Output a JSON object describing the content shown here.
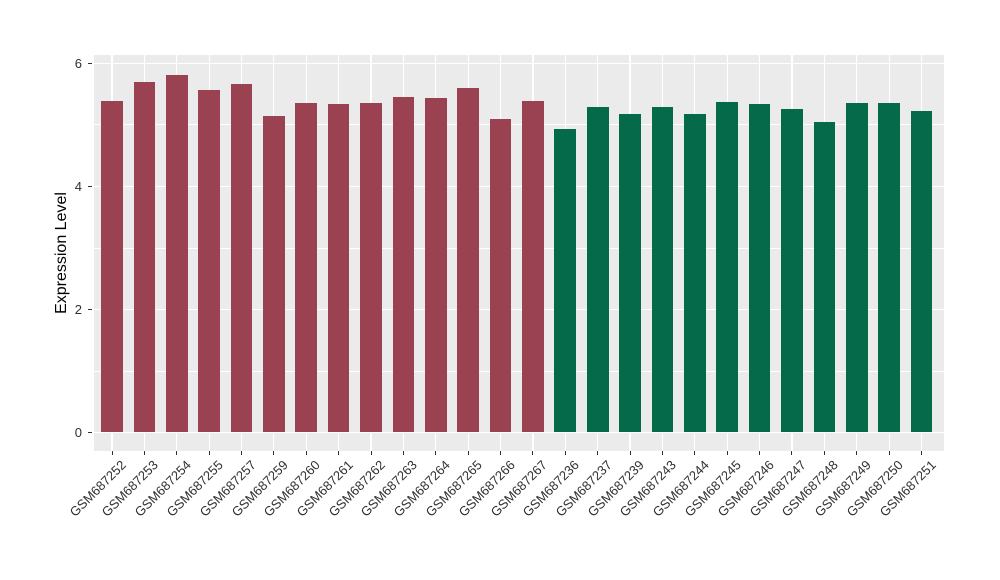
{
  "chart_data": {
    "type": "bar",
    "title": "",
    "xlabel": "",
    "ylabel": "Expression Level",
    "ylim": [
      0,
      6.15
    ],
    "yticks": [
      0,
      2,
      4,
      6
    ],
    "minor_gridlines": [
      1,
      3,
      5
    ],
    "grid": "on",
    "legend": "none",
    "panel_background": "#EBEBEB",
    "gridline_color": "#FFFFFF",
    "categories": [
      "GSM687252",
      "GSM687253",
      "GSM687254",
      "GSM687255",
      "GSM687257",
      "GSM687259",
      "GSM687260",
      "GSM687261",
      "GSM687262",
      "GSM687263",
      "GSM687264",
      "GSM687265",
      "GSM687266",
      "GSM687267",
      "GSM687236",
      "GSM687237",
      "GSM687239",
      "GSM687243",
      "GSM687244",
      "GSM687245",
      "GSM687246",
      "GSM687247",
      "GSM687248",
      "GSM687249",
      "GSM687250",
      "GSM687251"
    ],
    "values": [
      5.39,
      5.69,
      5.81,
      5.56,
      5.66,
      5.15,
      5.35,
      5.33,
      5.35,
      5.45,
      5.43,
      5.59,
      5.09,
      5.38,
      4.93,
      5.29,
      5.18,
      5.29,
      5.17,
      5.37,
      5.34,
      5.25,
      5.04,
      5.36,
      5.35,
      5.23
    ],
    "groups": [
      "maroon",
      "maroon",
      "maroon",
      "maroon",
      "maroon",
      "maroon",
      "maroon",
      "maroon",
      "maroon",
      "maroon",
      "maroon",
      "maroon",
      "maroon",
      "maroon",
      "green",
      "green",
      "green",
      "green",
      "green",
      "green",
      "green",
      "green",
      "green",
      "green",
      "green",
      "green"
    ],
    "palette": {
      "maroon": "#9B4252",
      "green": "#046A4A"
    }
  }
}
